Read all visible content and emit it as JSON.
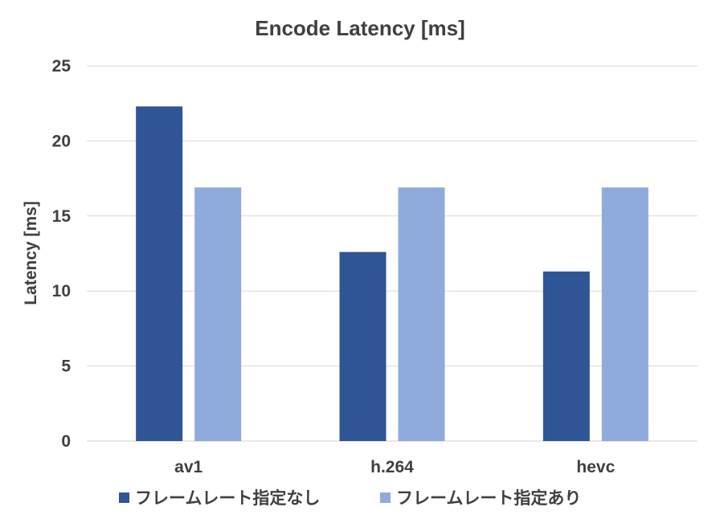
{
  "chart_data": {
    "type": "bar",
    "title": "Encode Latency [ms]",
    "xlabel": "",
    "ylabel": "Latency [ms]",
    "categories": [
      "av1",
      "h.264",
      "hevc"
    ],
    "series": [
      {
        "name": "フレームレート指定なし",
        "color": "#2f5597",
        "values": [
          22.3,
          12.6,
          11.3
        ]
      },
      {
        "name": "フレームレート指定あり",
        "color": "#8faadc",
        "values": [
          16.9,
          16.9,
          16.9
        ]
      }
    ],
    "ylim": [
      0,
      25
    ],
    "yticks": [
      "0",
      "5",
      "10",
      "15",
      "20",
      "25"
    ],
    "grid": true,
    "legend": "bottom"
  }
}
